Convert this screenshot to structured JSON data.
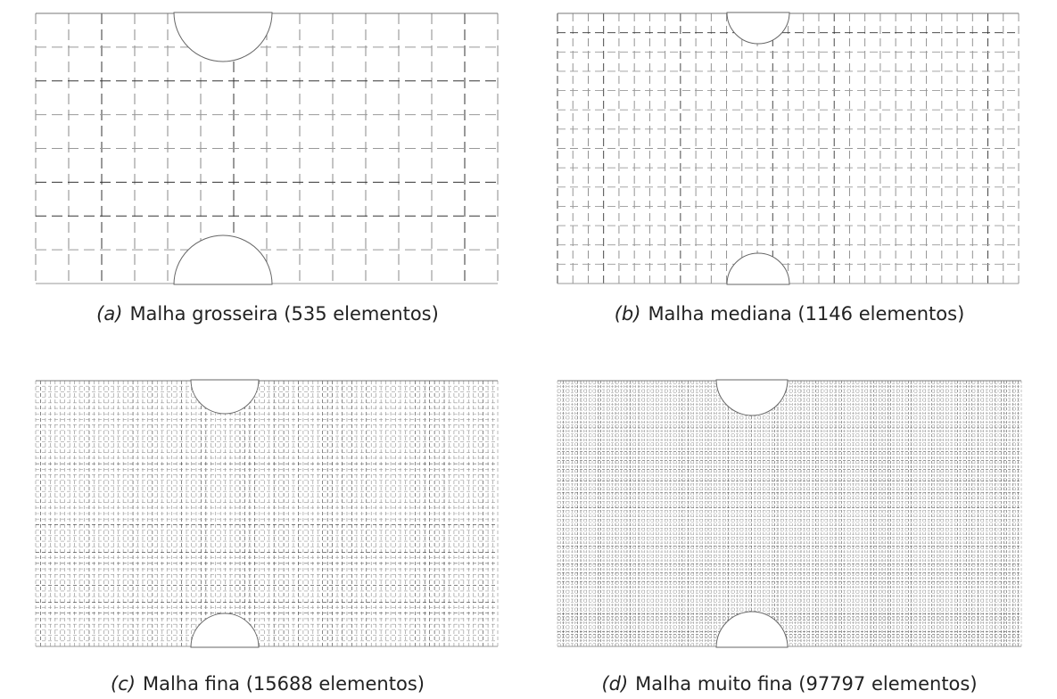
{
  "figure": {
    "panels": [
      {
        "tag": "(a)",
        "caption": "Malha grosseira (535 elementos)"
      },
      {
        "tag": "(b)",
        "caption": "Malha mediana (1146 elementos)"
      },
      {
        "tag": "(c)",
        "caption": "Malha fina (15688 elementos)"
      },
      {
        "tag": "(d)",
        "caption": "Malha muito fina (97797 elementos)"
      }
    ]
  }
}
